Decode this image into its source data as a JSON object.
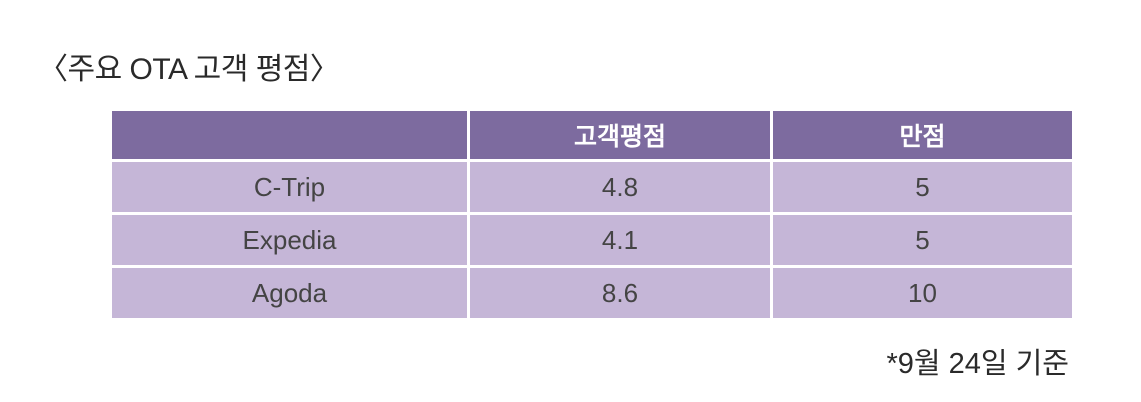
{
  "header": {
    "title": "〈주요 OTA 고객 평점〉"
  },
  "table": {
    "columns": [
      "고객평점",
      "만점"
    ],
    "rows": [
      [
        "C-Trip",
        "4.8",
        "5"
      ],
      [
        "Expedia",
        "4.1",
        "5"
      ],
      [
        "Agoda",
        "8.6",
        "10"
      ]
    ]
  },
  "footer": {
    "note": "*9월 24일 기준"
  }
}
